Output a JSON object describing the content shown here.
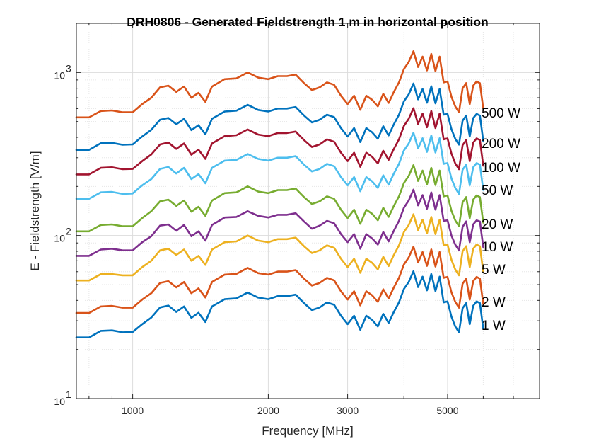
{
  "chart_data": {
    "type": "line",
    "title": "DRH0806 - Generated Fieldstrength 1 m in horizontal position",
    "xlabel": "Frequency [MHz]",
    "ylabel": "E - Fieldstrength [V/m]",
    "x_scale": "log",
    "y_scale": "log",
    "xlim": [
      750,
      8000
    ],
    "ylim": [
      10,
      2000
    ],
    "x_ticks": [
      1000,
      2000,
      3000,
      5000
    ],
    "x_tick_labels": [
      "1000",
      "2000",
      "3000",
      "5000"
    ],
    "y_tick_labels": [
      {
        "value": 10,
        "base": "10",
        "exp": "1"
      },
      {
        "value": 100,
        "base": "10",
        "exp": "2"
      },
      {
        "value": 1000,
        "base": "10",
        "exp": "3"
      }
    ],
    "grid": true,
    "x": [
      750,
      800,
      850,
      900,
      950,
      1000,
      1050,
      1100,
      1150,
      1200,
      1250,
      1300,
      1350,
      1400,
      1450,
      1500,
      1600,
      1700,
      1800,
      1900,
      2000,
      2100,
      2200,
      2300,
      2400,
      2500,
      2600,
      2700,
      2800,
      2900,
      3000,
      3100,
      3200,
      3300,
      3400,
      3500,
      3600,
      3700,
      3800,
      3900,
      4000,
      4100,
      4200,
      4300,
      4400,
      4500,
      4600,
      4700,
      4800,
      4900,
      5000,
      5100,
      5200,
      5300,
      5400,
      5500,
      5600,
      5700,
      5800,
      5900,
      6000
    ],
    "series": [
      {
        "name": "500 W",
        "color": "#D95319",
        "values": [
          530,
          530,
          580,
          585,
          570,
          570,
          640,
          700,
          810,
          830,
          760,
          820,
          700,
          750,
          660,
          820,
          910,
          920,
          1000,
          930,
          910,
          950,
          950,
          970,
          860,
          780,
          810,
          870,
          840,
          720,
          640,
          720,
          590,
          720,
          680,
          620,
          740,
          650,
          760,
          870,
          1050,
          1160,
          1350,
          1080,
          1250,
          1030,
          1300,
          1020,
          1250,
          870,
          880,
          710,
          620,
          570,
          800,
          860,
          640,
          830,
          880,
          860,
          600
        ]
      },
      {
        "name": "200 W",
        "color": "#0072BD",
        "values": [
          335,
          335,
          368,
          370,
          360,
          362,
          405,
          445,
          513,
          526,
          481,
          520,
          443,
          475,
          418,
          520,
          576,
          583,
          633,
          589,
          576,
          601,
          601,
          614,
          544,
          494,
          513,
          551,
          532,
          456,
          405,
          456,
          374,
          456,
          430,
          392,
          468,
          411,
          481,
          551,
          665,
          734,
          855,
          684,
          791,
          652,
          823,
          646,
          791,
          551,
          557,
          449,
          392,
          361,
          506,
          544,
          405,
          525,
          557,
          544,
          380
        ]
      },
      {
        "name": "100 W",
        "color": "#A2142F",
        "values": [
          237,
          237,
          260,
          262,
          255,
          256,
          286,
          314,
          362,
          372,
          340,
          367,
          313,
          336,
          295,
          367,
          407,
          412,
          447,
          416,
          407,
          425,
          425,
          434,
          385,
          349,
          362,
          389,
          376,
          322,
          286,
          322,
          264,
          322,
          304,
          277,
          331,
          291,
          340,
          389,
          470,
          519,
          604,
          483,
          559,
          461,
          581,
          456,
          559,
          389,
          394,
          318,
          277,
          255,
          358,
          385,
          286,
          371,
          394,
          385,
          268
        ]
      },
      {
        "name": "50 W",
        "color": "#4DBEEE",
        "values": [
          168,
          168,
          184,
          185,
          180,
          181,
          203,
          222,
          256,
          263,
          240,
          260,
          222,
          238,
          209,
          260,
          288,
          291,
          316,
          295,
          288,
          300,
          300,
          307,
          272,
          247,
          256,
          275,
          266,
          228,
          203,
          228,
          187,
          228,
          215,
          196,
          234,
          205,
          240,
          275,
          332,
          367,
          427,
          342,
          395,
          326,
          411,
          323,
          395,
          275,
          278,
          224,
          196,
          180,
          253,
          272,
          203,
          262,
          278,
          272,
          190
        ]
      },
      {
        "name": "20 W",
        "color": "#77AC30",
        "values": [
          106,
          106,
          116,
          117,
          114,
          114,
          128,
          141,
          162,
          166,
          152,
          164,
          140,
          150,
          132,
          164,
          182,
          184,
          200,
          186,
          182,
          190,
          190,
          194,
          172,
          156,
          162,
          174,
          168,
          144,
          128,
          144,
          118,
          144,
          136,
          124,
          148,
          130,
          152,
          174,
          210,
          232,
          270,
          216,
          250,
          206,
          260,
          204,
          250,
          174,
          176,
          142,
          124,
          114,
          160,
          172,
          128,
          166,
          176,
          172,
          120
        ]
      },
      {
        "name": "10 W",
        "color": "#7E2F8E",
        "values": [
          75,
          75,
          82,
          83,
          81,
          81,
          91,
          99,
          115,
          117,
          107,
          116,
          99,
          106,
          93,
          116,
          129,
          130,
          141,
          132,
          129,
          134,
          134,
          137,
          122,
          110,
          115,
          123,
          119,
          102,
          91,
          102,
          83,
          102,
          96,
          88,
          105,
          92,
          107,
          123,
          148,
          164,
          191,
          153,
          177,
          146,
          184,
          144,
          177,
          123,
          124,
          100,
          88,
          81,
          113,
          122,
          91,
          117,
          124,
          122,
          85
        ]
      },
      {
        "name": "5 W",
        "color": "#EDB120",
        "values": [
          53,
          53,
          58,
          58,
          57,
          57,
          64,
          70,
          81,
          83,
          76,
          82,
          70,
          75,
          66,
          82,
          91,
          92,
          100,
          93,
          91,
          95,
          95,
          97,
          86,
          78,
          81,
          87,
          84,
          72,
          64,
          72,
          59,
          72,
          68,
          62,
          74,
          65,
          76,
          87,
          105,
          116,
          135,
          108,
          125,
          103,
          130,
          102,
          125,
          87,
          88,
          71,
          62,
          57,
          80,
          86,
          64,
          83,
          88,
          86,
          60
        ]
      },
      {
        "name": "2 W",
        "color": "#D95319",
        "values": [
          33.5,
          33.5,
          36.7,
          37,
          36.1,
          36.1,
          40.5,
          44.3,
          51.2,
          52.5,
          48.1,
          51.9,
          44.3,
          47.4,
          41.7,
          51.9,
          57.6,
          58.2,
          63.3,
          58.8,
          57.6,
          60.1,
          60.1,
          61.4,
          54.4,
          49.3,
          51.2,
          55,
          53.1,
          45.5,
          40.5,
          45.5,
          37.3,
          45.5,
          43,
          39.2,
          46.8,
          41.1,
          48.1,
          55,
          66.4,
          73.4,
          85.4,
          68.3,
          79.1,
          65.2,
          82.2,
          64.5,
          79.1,
          55,
          55.7,
          44.9,
          39.2,
          36.1,
          50.6,
          54.4,
          40.5,
          52.5,
          55.7,
          54.4,
          38
        ]
      },
      {
        "name": "1 W",
        "color": "#0072BD",
        "values": [
          23.7,
          23.7,
          26,
          26.2,
          25.5,
          25.6,
          28.6,
          31.4,
          36.2,
          37.2,
          34,
          36.7,
          31.3,
          33.6,
          29.5,
          36.7,
          40.7,
          41.2,
          44.7,
          41.6,
          40.7,
          42.5,
          42.5,
          43.4,
          38.5,
          34.9,
          36.2,
          38.9,
          37.6,
          32.2,
          28.6,
          32.2,
          26.4,
          32.2,
          30.4,
          27.7,
          33.1,
          29.1,
          34,
          38.9,
          47,
          51.9,
          60.4,
          48.3,
          55.9,
          46.1,
          58.1,
          45.6,
          55.9,
          38.9,
          39.4,
          31.8,
          27.7,
          25.5,
          35.8,
          38.5,
          28.6,
          37.1,
          39.4,
          38.5,
          26.8
        ]
      }
    ]
  }
}
